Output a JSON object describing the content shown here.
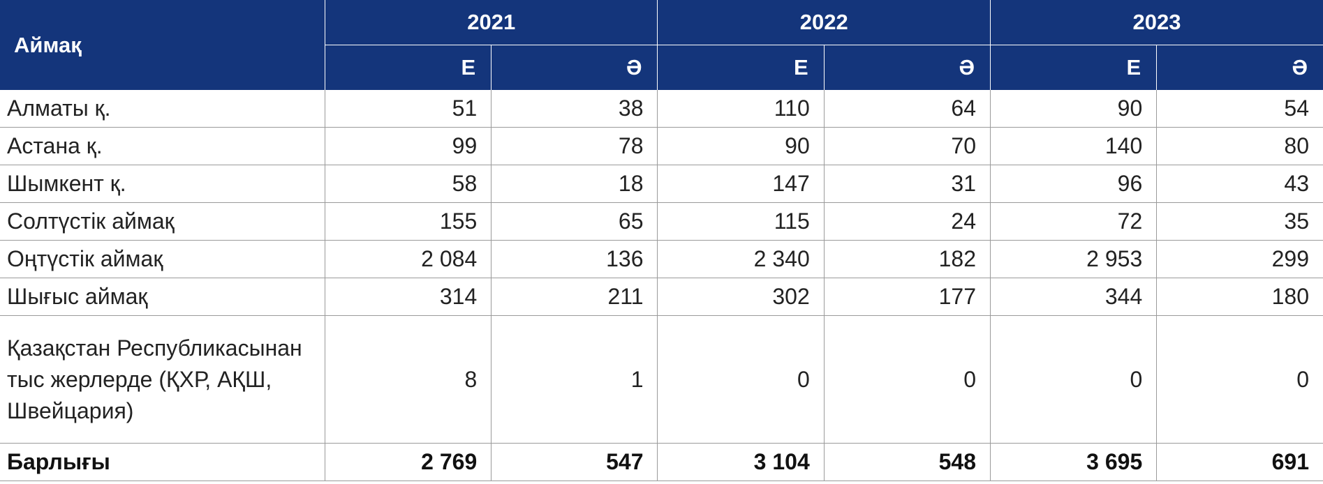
{
  "table": {
    "header": {
      "region_label": "Аймақ",
      "years": [
        "2021",
        "2022",
        "2023"
      ],
      "subcols": [
        "Е",
        "Ә",
        "Е",
        "Ә",
        "Е",
        "Ә"
      ]
    },
    "rows": [
      {
        "name": "Алматы қ.",
        "values": [
          "51",
          "38",
          "110",
          "64",
          "90",
          "54"
        ]
      },
      {
        "name": "Астана қ.",
        "values": [
          "99",
          "78",
          "90",
          "70",
          "140",
          "80"
        ]
      },
      {
        "name": "Шымкент қ.",
        "values": [
          "58",
          "18",
          "147",
          "31",
          "96",
          "43"
        ]
      },
      {
        "name": "Солтүстік аймақ",
        "values": [
          "155",
          "65",
          "115",
          "24",
          "72",
          "35"
        ]
      },
      {
        "name": "Оңтүстік аймақ",
        "values": [
          "2 084",
          "136",
          "2 340",
          "182",
          "2 953",
          "299"
        ]
      },
      {
        "name": "Шығыс аймақ",
        "values": [
          "314",
          "211",
          "302",
          "177",
          "344",
          "180"
        ]
      },
      {
        "name": "Қазақстан Республикасынан тыс жерлерде (ҚХР, АҚШ, Швейцария)",
        "values": [
          "8",
          "1",
          "0",
          "0",
          "0",
          "0"
        ]
      }
    ],
    "total": {
      "name": "Барлығы",
      "values": [
        "2 769",
        "547",
        "3 104",
        "548",
        "3 695",
        "691"
      ]
    }
  }
}
